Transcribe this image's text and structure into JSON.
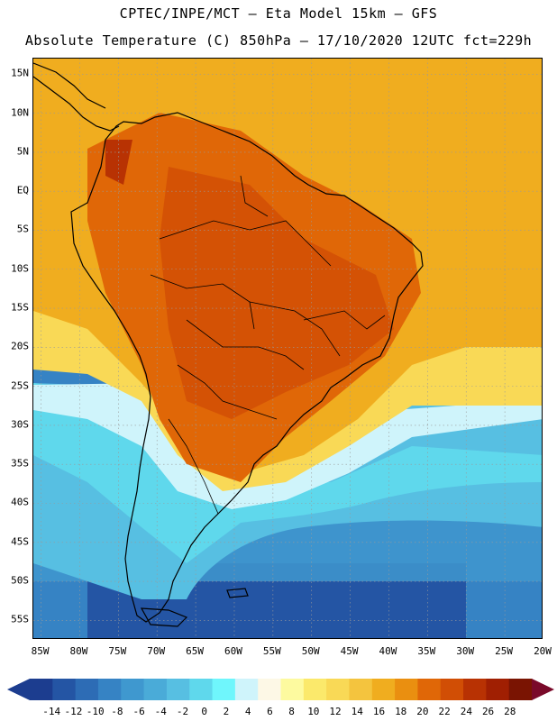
{
  "title_line1": "CPTEC/INPE/MCT —  Eta Model 15km — GFS",
  "title_line2": "Absolute Temperature (C) 850hPa — 17/10/2020 12UTC fct=229h",
  "map": {
    "lat_labels": [
      "15N",
      "10N",
      "5N",
      "EQ",
      "5S",
      "10S",
      "15S",
      "20S",
      "25S",
      "30S",
      "35S",
      "40S",
      "45S",
      "50S",
      "55S"
    ],
    "lat_values": [
      15,
      10,
      5,
      0,
      -5,
      -10,
      -15,
      -20,
      -25,
      -30,
      -35,
      -40,
      -45,
      -50,
      -55
    ],
    "lon_labels": [
      "85W",
      "80W",
      "75W",
      "70W",
      "65W",
      "60W",
      "55W",
      "50W",
      "45W",
      "40W",
      "35W",
      "30W",
      "25W",
      "20W"
    ],
    "lon_values": [
      -85,
      -80,
      -75,
      -70,
      -65,
      -60,
      -55,
      -50,
      -45,
      -40,
      -35,
      -30,
      -25,
      -20
    ],
    "lon_range": [
      -86,
      -20
    ],
    "lat_range": [
      -57.5,
      17
    ]
  },
  "colorbar": {
    "labels": [
      "-14",
      "-12",
      "-10",
      "-8",
      "-6",
      "-4",
      "-2",
      "0",
      "2",
      "4",
      "6",
      "8",
      "10",
      "12",
      "14",
      "16",
      "18",
      "20",
      "22",
      "24",
      "26",
      "28"
    ],
    "colors": [
      "#1c3d8f",
      "#2455a4",
      "#2d6cb5",
      "#3683c4",
      "#3f98cf",
      "#4aabd8",
      "#57bfe2",
      "#5fd8ec",
      "#6ff6fc",
      "#cff4fb",
      "#fdf8e6",
      "#fdfa9f",
      "#fbe96b",
      "#f9d956",
      "#f4c43e",
      "#f0ad1f",
      "#ea8f10",
      "#e06707",
      "#d14e05",
      "#b83203",
      "#a01f02",
      "#7a1402"
    ],
    "left_arrow_color": "#1c3d8f",
    "right_arrow_color": "#7a0a2a"
  }
}
